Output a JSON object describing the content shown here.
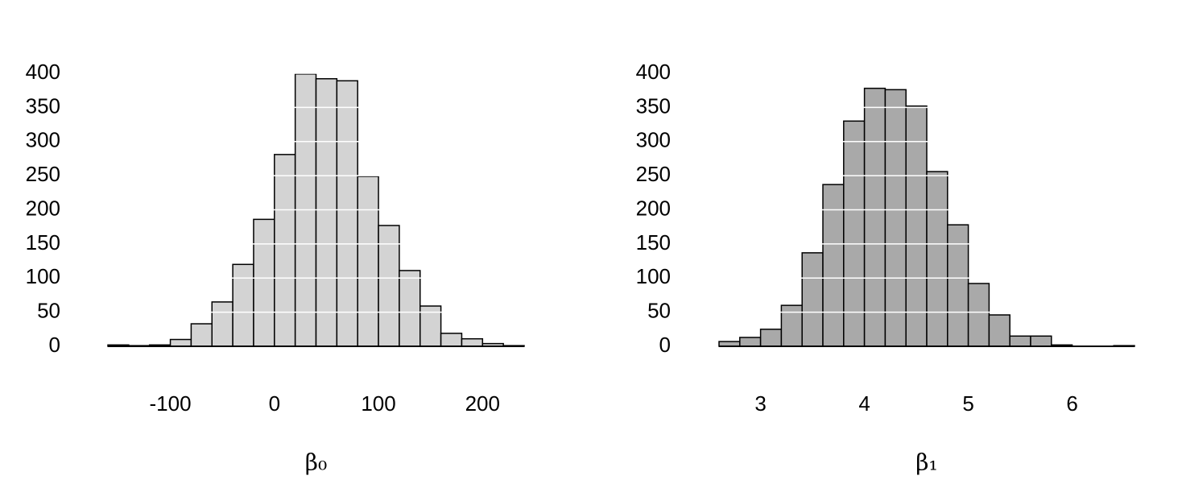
{
  "chart_data": [
    {
      "type": "histogram",
      "x_label": "β₀",
      "color": "#d3d3d3",
      "bins": [
        -160,
        -140,
        -120,
        -100,
        -80,
        -60,
        -40,
        -20,
        0,
        20,
        40,
        60,
        80,
        100,
        120,
        140,
        160,
        180,
        200,
        220,
        240
      ],
      "values": [
        2,
        1,
        2,
        10,
        33,
        65,
        120,
        186,
        281,
        399,
        392,
        389,
        249,
        177,
        111,
        59,
        19,
        11,
        4,
        1
      ],
      "xlim": [
        -160,
        240
      ],
      "xticks": [
        -100,
        0,
        100,
        200
      ],
      "ylim": [
        0,
        400
      ],
      "yticks": [
        0,
        50,
        100,
        150,
        200,
        250,
        300,
        350,
        400
      ],
      "grid": true
    },
    {
      "type": "histogram",
      "x_label": "β₁",
      "color": "#a9a9a9",
      "bins": [
        2.6,
        2.8,
        3.0,
        3.2,
        3.4,
        3.6,
        3.8,
        4.0,
        4.2,
        4.4,
        4.6,
        4.8,
        5.0,
        5.2,
        5.4,
        5.6,
        5.8,
        6.0,
        6.2,
        6.4,
        6.6
      ],
      "values": [
        7,
        13,
        25,
        60,
        137,
        237,
        330,
        378,
        376,
        352,
        256,
        178,
        92,
        46,
        15,
        15,
        2,
        0,
        0,
        1
      ],
      "xlim": [
        2.6,
        6.6
      ],
      "xticks": [
        3,
        4,
        5,
        6
      ],
      "ylim": [
        0,
        400
      ],
      "yticks": [
        0,
        50,
        100,
        150,
        200,
        250,
        300,
        350,
        400
      ],
      "grid": true
    }
  ]
}
